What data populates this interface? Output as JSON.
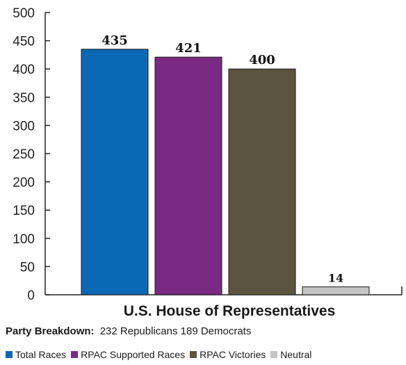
{
  "chart_data": {
    "type": "bar",
    "title": "U.S. House of Representatives",
    "xlabel": "",
    "ylabel": "",
    "ylim": [
      0,
      500
    ],
    "yticks": [
      0,
      50,
      100,
      150,
      200,
      250,
      300,
      350,
      400,
      450,
      500
    ],
    "grid": false,
    "legend_position": "bottom",
    "categories": [
      "Total Races",
      "RPAC Supported Races",
      "RPAC Victories",
      "Neutral"
    ],
    "values": [
      435,
      421,
      400,
      14
    ],
    "colors": [
      "#0b68b4",
      "#7b2a83",
      "#5a5440",
      "#c4c4c4"
    ]
  },
  "breakdown": {
    "label": "Party Breakdown:",
    "value": "232 Republicans 189 Democrats"
  }
}
